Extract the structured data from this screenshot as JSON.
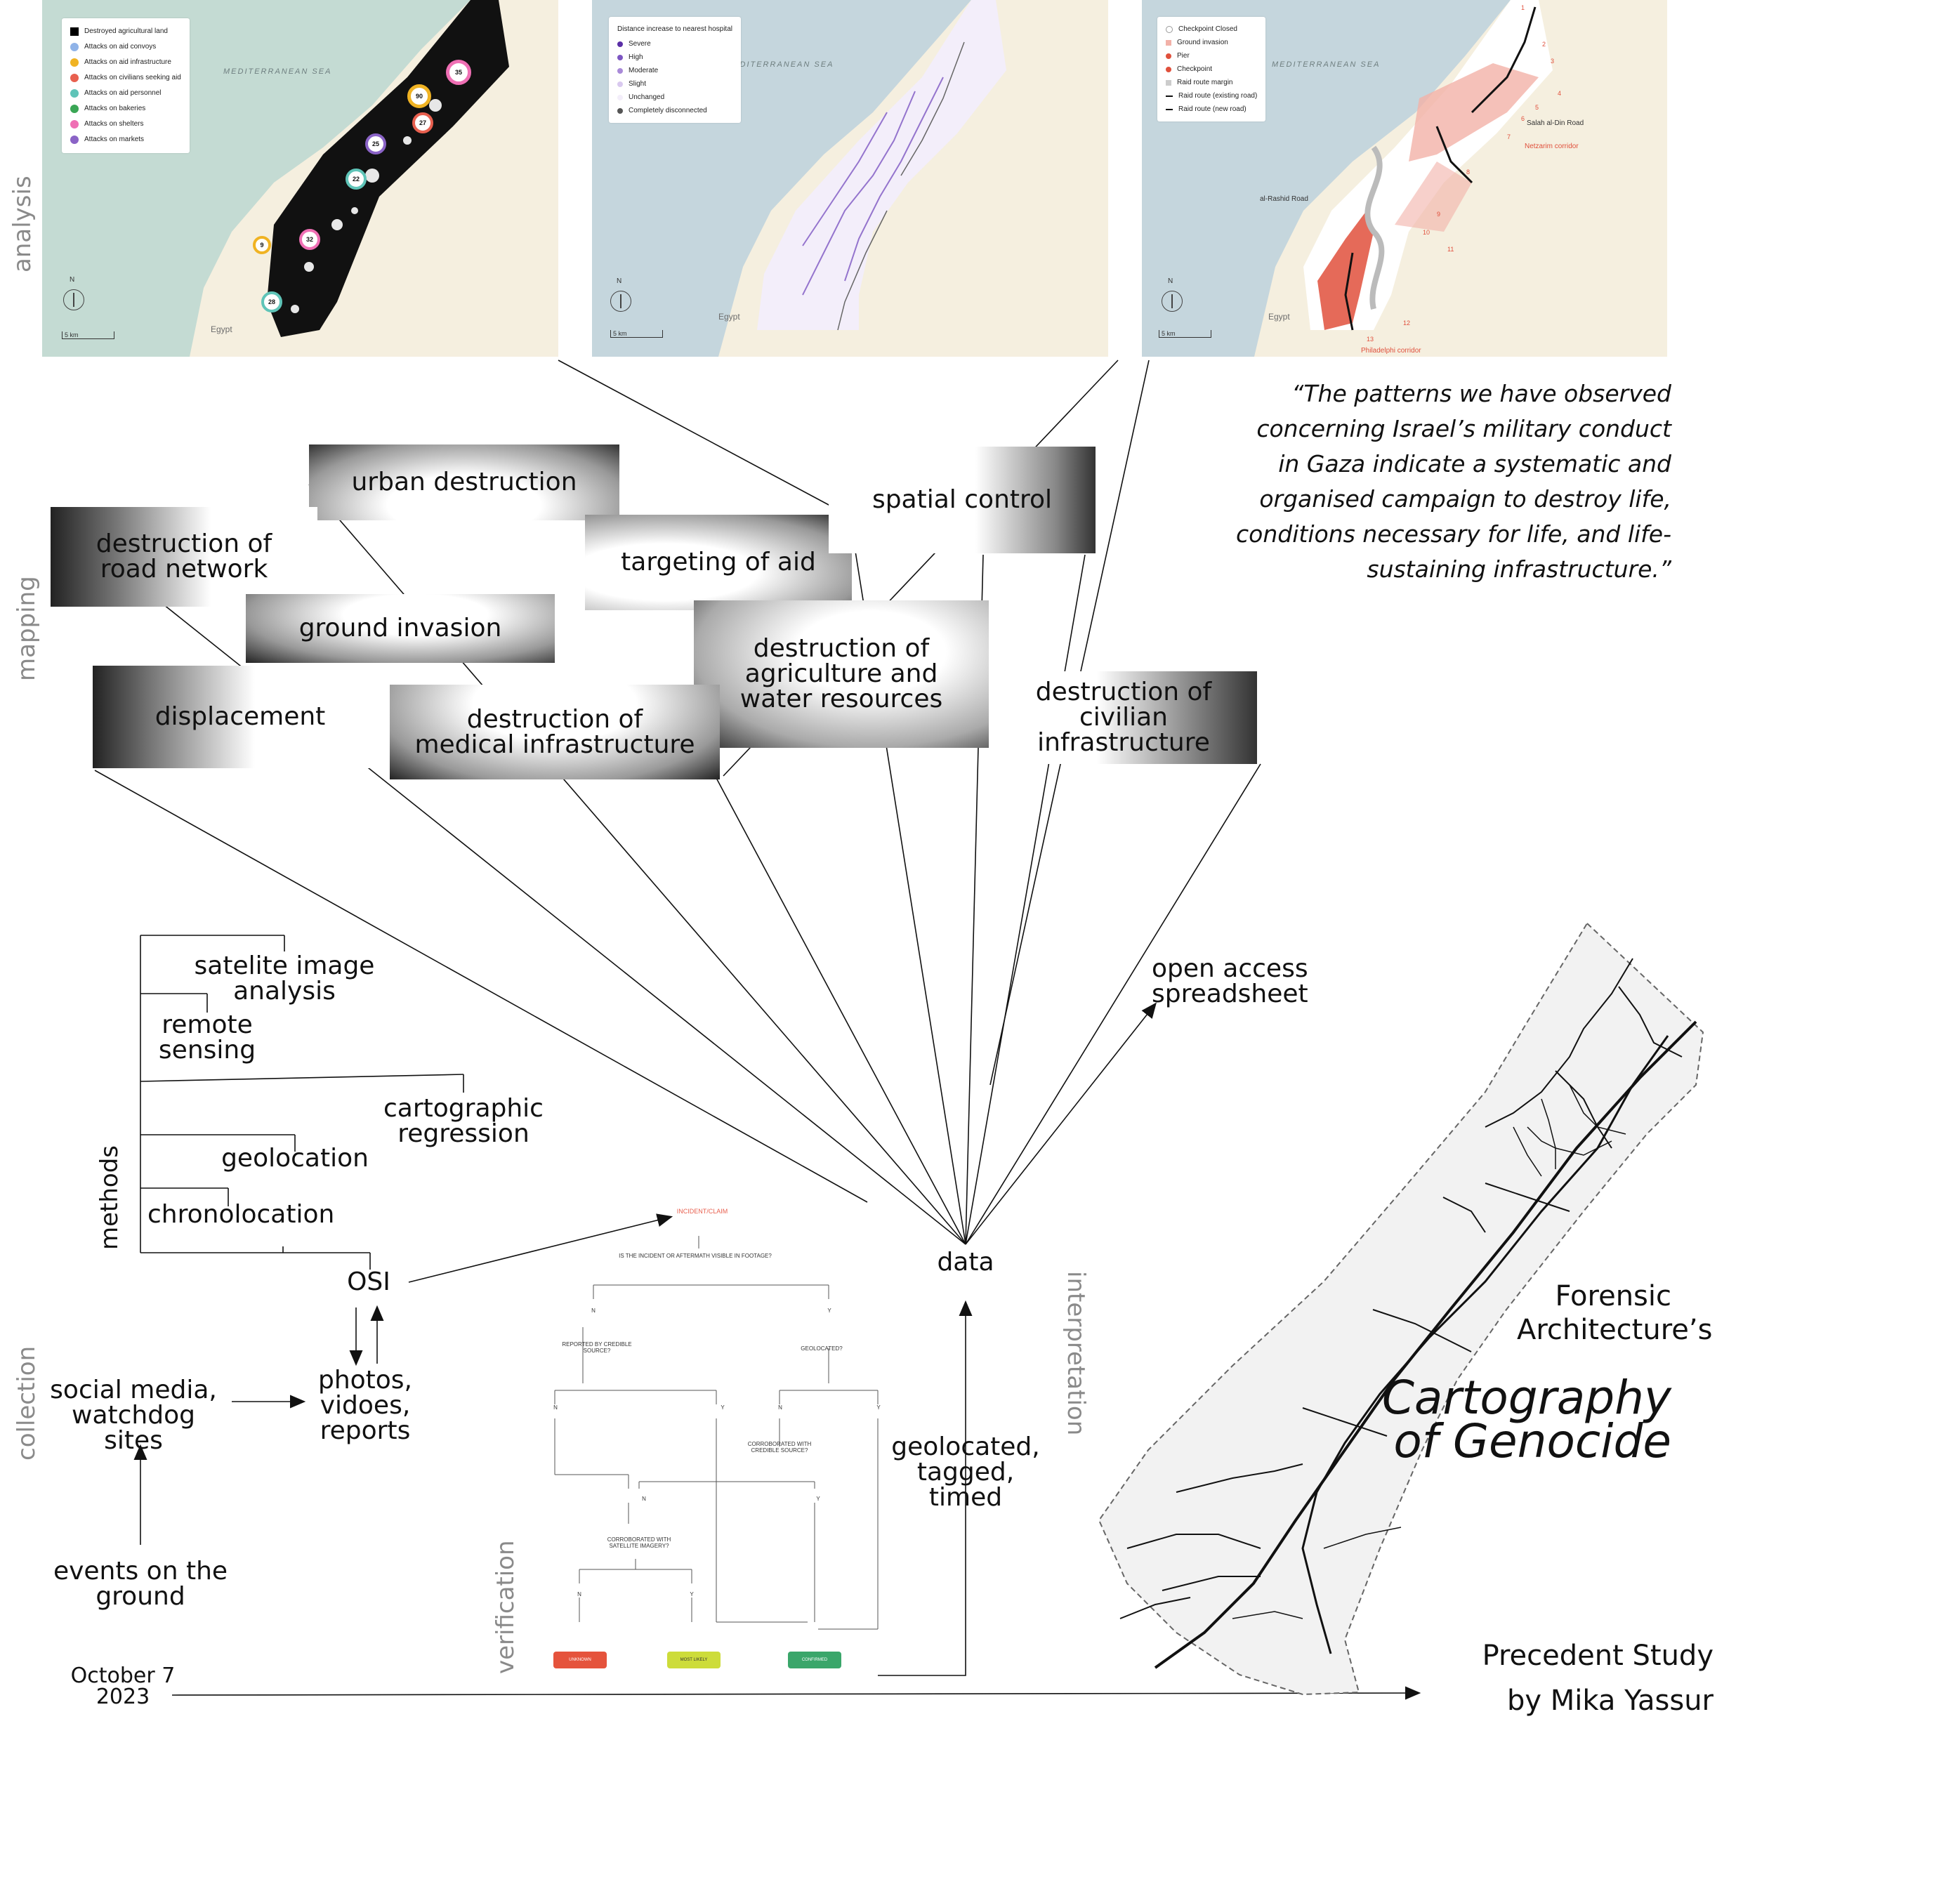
{
  "side_labels": {
    "analysis": "analysis",
    "mapping": "mapping",
    "methods": "methods",
    "collection": "collection",
    "verification": "verification",
    "interpretation": "interpretation"
  },
  "map1": {
    "sea_label": "MEDITERRANEAN SEA",
    "country_label": "Egypt",
    "scale_label": "5 km",
    "north_label": "N",
    "legend": [
      {
        "label": "Destroyed agricultural land",
        "color": "#000000"
      },
      {
        "label": "Attacks on aid convoys",
        "color": "#8fb3e8"
      },
      {
        "label": "Attacks on aid infrastructure",
        "color": "#f0b323"
      },
      {
        "label": "Attacks on civilians seeking aid",
        "color": "#e8604f"
      },
      {
        "label": "Attacks on aid personnel",
        "color": "#5fc4b8"
      },
      {
        "label": "Attacks on bakeries",
        "color": "#3aa655"
      },
      {
        "label": "Attacks on shelters",
        "color": "#ef6fb4"
      },
      {
        "label": "Attacks on markets",
        "color": "#8a63c6"
      }
    ],
    "cluster_counts": [
      "35",
      "90",
      "27",
      "25",
      "22",
      "9",
      "32",
      "28"
    ]
  },
  "map2": {
    "sea_label": "MEDITERRANEAN SEA",
    "country_label": "Egypt",
    "scale_label": "5 km",
    "north_label": "N",
    "legend_title": "Distance increase to nearest hospital",
    "legend": [
      {
        "label": "Severe",
        "color": "#5a2ea6"
      },
      {
        "label": "High",
        "color": "#7d56c2"
      },
      {
        "label": "Moderate",
        "color": "#a98ad8"
      },
      {
        "label": "Slight",
        "color": "#d9c9ef"
      },
      {
        "label": "Unchanged",
        "color": "#f3eefa"
      },
      {
        "label": "Completely disconnected",
        "color": "#555555"
      }
    ]
  },
  "map3": {
    "sea_label": "MEDITERRANEAN SEA",
    "country_label": "Egypt",
    "scale_label": "5 km",
    "north_label": "N",
    "legend": [
      {
        "label": "Checkpoint Closed",
        "color": "#bbbbbb"
      },
      {
        "label": "Ground invasion",
        "color": "#f2b1a8"
      },
      {
        "label": "Pier",
        "color": "#e0503c"
      },
      {
        "label": "Checkpoint",
        "color": "#e0503c"
      },
      {
        "label": "Raid route margin",
        "color": "#cccccc"
      },
      {
        "label": "Raid route (existing road)",
        "color": "#111111"
      },
      {
        "label": "Raid route (new road)",
        "color": "#111111"
      }
    ],
    "places": {
      "salah": "Salah al-Din Road",
      "netzarim": "Netzarim corridor",
      "rashid": "al-Rashid Road",
      "philadelphi": "Philadelphi corridor"
    },
    "numbers": [
      "1",
      "2",
      "3",
      "4",
      "5",
      "6",
      "7",
      "8",
      "9",
      "10",
      "11",
      "12",
      "13"
    ]
  },
  "quote": "“The patterns we have observed concerning Israel’s military conduct in Gaza indicate a systematic and organised campaign to destroy life, conditions necessary for life, and life-sustaining infrastructure.”",
  "mapping_boxes": {
    "road": "destruction of road network",
    "urban": "urban destruction",
    "targeting": "targeting of aid",
    "spatial": "spatial control",
    "ground": "ground invasion",
    "agri": "destruction of agriculture and water resources",
    "displacement": "displacement",
    "medical": "destruction of medical infrastructure",
    "civilian": "destruction of civilian infrastructure"
  },
  "methods": {
    "satelite": "satelite image analysis",
    "remote": "remote sensing",
    "carto": "cartographic regression",
    "geoloc": "geolocation",
    "chrono": "chronolocation"
  },
  "nodes": {
    "osi": "OSI",
    "social": "social media, watchdog sites",
    "photos": "photos, vidoes, reports",
    "events": "events on the ground",
    "data": "data",
    "open_access": "open access spreadsheet",
    "geotagged": "geolocated, tagged, timed",
    "date": "October 7 2023"
  },
  "flowchart": {
    "incident": "INCIDENT/CLAIM",
    "q1": "IS THE INCIDENT OR AFTERMATH VISIBLE IN FOOTAGE?",
    "n": "N",
    "y": "Y",
    "reported": "REPORTED BY CREDIBLE SOURCE?",
    "geolocated": "GEOLOCATED?",
    "corroborated_source": "CORROBORATED WITH CREDIBLE SOURCE?",
    "corroborated_sat": "CORROBORATED WITH SATELLITE IMAGERY?",
    "unknown": "UNKNOWN",
    "likely": "MOST LIKELY",
    "confirmed": "CONFIRMED",
    "colors": {
      "unknown": "#e5533c",
      "likely": "#cddc3a",
      "confirmed": "#3aa66a",
      "incident": "#e8604f"
    }
  },
  "titles": {
    "forensic": "Forensic Architecture’s",
    "cartography_1": "Cartography",
    "cartography_2": "of Genocide",
    "precedent_1": "Precedent Study",
    "precedent_2": "by Mika Yassur"
  }
}
